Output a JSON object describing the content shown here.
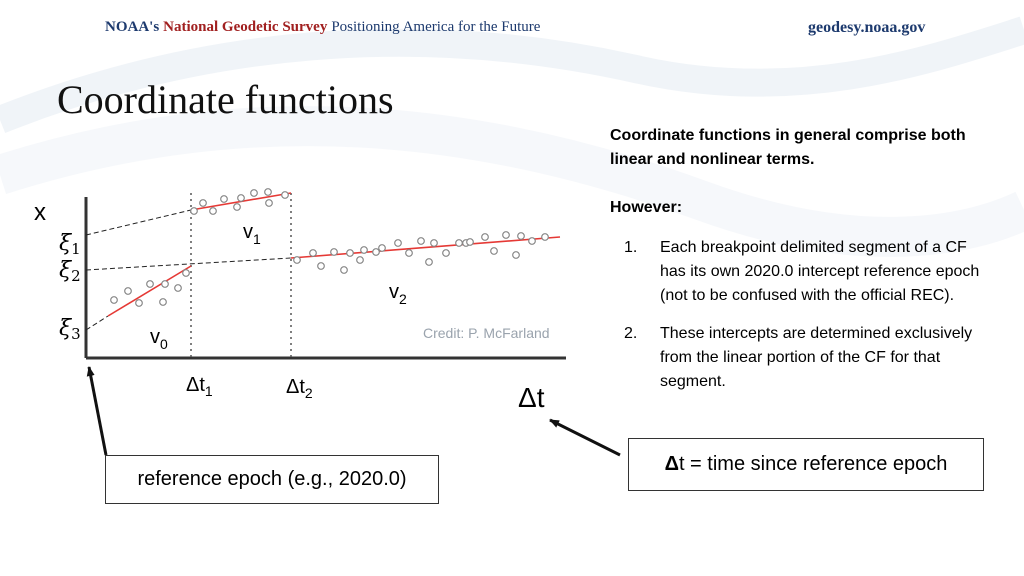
{
  "header": {
    "org": "NOAA's",
    "agency": "National Geodetic Survey",
    "tagline": "Positioning America for the Future",
    "website": "geodesy.noaa.gov"
  },
  "title": "Coordinate functions",
  "panel": {
    "intro": "Coordinate functions in general comprise both linear and nonlinear terms.",
    "however": "However:",
    "items": [
      {
        "num": "1.",
        "text": "Each breakpoint delimited segment of a CF has its own 2020.0 intercept reference epoch (not to be confused with the official REC)."
      },
      {
        "num": "2.",
        "text": "These intercepts are determined exclusively from the linear portion of the CF for that segment."
      }
    ]
  },
  "diagram": {
    "y_axis_label": "x",
    "x_axis_label": "Δt",
    "xi_labels": [
      "ξ",
      "1",
      "ξ",
      "2",
      "ξ",
      "3"
    ],
    "velocity_labels": [
      "v",
      "0",
      "v",
      "1",
      "v",
      "2"
    ],
    "breakpoint_labels": [
      "Δt",
      "1",
      "Δt",
      "2"
    ],
    "credit": "Credit: P. McFarland",
    "colors": {
      "fit_line": "#e53935",
      "points": "#888888",
      "axis": "#333333"
    }
  },
  "callouts": {
    "reference_epoch": "reference epoch (e.g., 2020.0)",
    "dt_symbol": "Δ",
    "dt_text": "t = time since reference epoch"
  }
}
